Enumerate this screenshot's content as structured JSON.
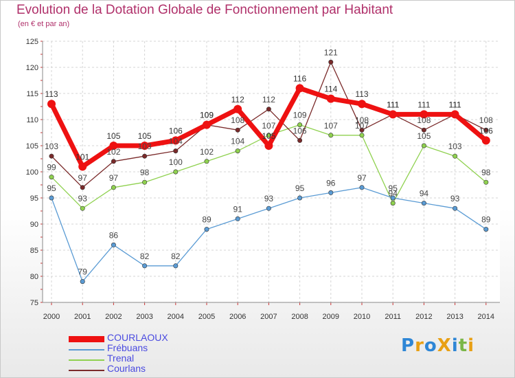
{
  "header": {
    "title": "Evolution de la Dotation Globale de Fonctionnement par Habitant",
    "subtitle": "(en € et par an)"
  },
  "logo": {
    "text": "ProXiti",
    "colors": [
      "#2e86d6",
      "#e8a015",
      "#2e86d6",
      "#e8a015",
      "#2e86d6",
      "#7ab648",
      "#e8a015"
    ]
  },
  "chart_data": {
    "type": "line",
    "title": "Evolution de la Dotation Globale de Fonctionnement par Habitant",
    "subtitle": "(en € et par an)",
    "xlabel": "",
    "ylabel": "",
    "ylim": [
      75,
      125
    ],
    "yticks": [
      75,
      80,
      85,
      90,
      95,
      100,
      105,
      110,
      115,
      120,
      125
    ],
    "grid": true,
    "legend_position": "bottom-left",
    "categories": [
      "2000",
      "2001",
      "2002",
      "2003",
      "2004",
      "2005",
      "2006",
      "2007",
      "2008",
      "2009",
      "2010",
      "2011",
      "2012",
      "2013",
      "2014"
    ],
    "series": [
      {
        "name": "Trenal",
        "color": "#8fd14f",
        "style": "thin",
        "values": [
          99,
          93,
          97,
          98,
          100,
          102,
          104,
          107,
          109,
          107,
          107,
          94,
          105,
          103,
          98
        ]
      },
      {
        "name": "Frébuans",
        "color": "#5a9bd4",
        "style": "thin",
        "values": [
          95,
          79,
          86,
          82,
          82,
          89,
          91,
          93,
          95,
          96,
          97,
          95,
          94,
          93,
          89
        ]
      },
      {
        "name": "Courlans",
        "color": "#7a2a2a",
        "style": "thin",
        "values": [
          103,
          97,
          102,
          103,
          104,
          109,
          108,
          112,
          106,
          121,
          108,
          111,
          108,
          111,
          108
        ]
      },
      {
        "name": "COURLAOUX",
        "color": "#ee1111",
        "style": "thick",
        "values": [
          113,
          101,
          105,
          105,
          106,
          109,
          112,
          105,
          116,
          114,
          113,
          111,
          111,
          111,
          106
        ]
      }
    ]
  },
  "legend": [
    {
      "name": "COURLAOUX",
      "color": "#ee1111",
      "style": "thick"
    },
    {
      "name": "Frébuans",
      "color": "#5a9bd4",
      "style": "thin"
    },
    {
      "name": "Trenal",
      "color": "#8fd14f",
      "style": "thin"
    },
    {
      "name": "Courlans",
      "color": "#7a2a2a",
      "style": "thin"
    }
  ]
}
